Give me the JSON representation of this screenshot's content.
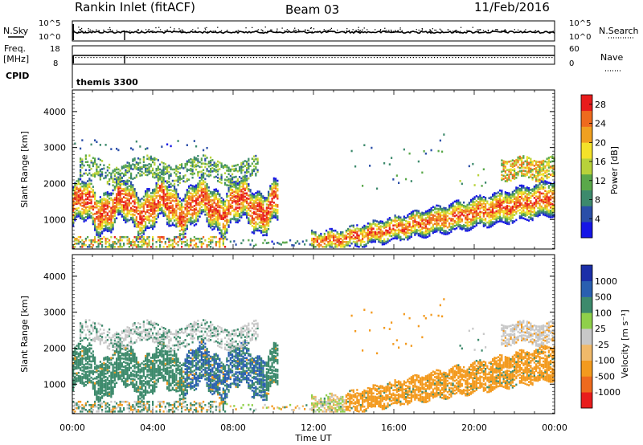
{
  "header": {
    "station": "Rankin Inlet (fitACF)",
    "beam": "Beam 03",
    "date": "11/Feb/2016"
  },
  "summary": {
    "left_labels": {
      "nsky": "N.Sky",
      "freq_top": "Freq.",
      "freq_unit": "[MHz]",
      "cpid": "CPID"
    },
    "right_labels": {
      "nsearch": "N.Search",
      "nave": "Nave"
    },
    "nsky_ticks": [
      "10^5",
      "10^0"
    ],
    "nsearch_ticks": [
      "10^5",
      "10^0"
    ],
    "freq_ticks": [
      "18",
      "8"
    ],
    "nave_ticks": [
      "60",
      "0"
    ],
    "cpid_text": "themis 3300"
  },
  "chart_data": [
    {
      "type": "heatmap",
      "panel": "power",
      "ylabel": "Slant Range [km]",
      "yticks": [
        "4000",
        "3000",
        "2000",
        "1000"
      ],
      "ylim": [
        180,
        4600
      ],
      "xlim": [
        0,
        24
      ],
      "colorbar_label": "Power [dB]",
      "colorbar_ticks": [
        "28",
        "24",
        "20",
        "16",
        "12",
        "8",
        "4"
      ],
      "colorbar_range": [
        0,
        30
      ],
      "colors": [
        "#1515e6",
        "#2a4ea8",
        "#3d8a6c",
        "#5aa84a",
        "#b8d23a",
        "#f4e22a",
        "#f0a020",
        "#ee6a1e",
        "#e81c1c"
      ],
      "regions": [
        {
          "label": "upper band morning",
          "t": [
            0.4,
            10.2
          ],
          "r": [
            2100,
            2700
          ],
          "peak_db": 16
        },
        {
          "label": "main band morning",
          "t": [
            0.0,
            10.2
          ],
          "r": [
            900,
            1900
          ],
          "peak_db": 28
        },
        {
          "label": "near range morning",
          "t": [
            0.0,
            7.5
          ],
          "r": [
            200,
            500
          ],
          "peak_db": 26
        },
        {
          "label": "rising band afternoon",
          "t": [
            11.8,
            24.0
          ],
          "r": [
            300,
            1500
          ],
          "peak_db": 28
        },
        {
          "label": "upper band evening",
          "t": [
            21.3,
            24.0
          ],
          "r": [
            2100,
            2700
          ],
          "peak_db": 26
        }
      ]
    },
    {
      "type": "heatmap",
      "panel": "velocity",
      "ylabel": "Slant Range [km]",
      "yticks": [
        "4000",
        "3000",
        "2000",
        "1000"
      ],
      "ylim": [
        180,
        4600
      ],
      "xlim": [
        0,
        24
      ],
      "colorbar_label": "Velocity [m s⁻¹]",
      "colorbar_ticks": [
        "1000",
        "500",
        "100",
        "25",
        "-25",
        "-100",
        "-500",
        "-1000"
      ],
      "colors": [
        "#e81c1c",
        "#ee6a1e",
        "#f39a1e",
        "#f0b96a",
        "#c8c8c8",
        "#8fd04a",
        "#3d8a6c",
        "#2a5fb0",
        "#1b2fa8"
      ],
      "x_tick_labels": [
        "00:00",
        "04:00",
        "08:00",
        "12:00",
        "16:00",
        "20:00",
        "00:00"
      ],
      "xlabel": "Time UT",
      "regions": [
        {
          "label": "grey upper morning",
          "t": [
            0.4,
            9.0
          ],
          "r": [
            2100,
            2700
          ],
          "velocity": 0
        },
        {
          "label": "green main morning",
          "t": [
            0.0,
            10.2
          ],
          "r": [
            900,
            1900
          ],
          "velocity": 200
        },
        {
          "label": "blue morning",
          "t": [
            5.5,
            9.5
          ],
          "r": [
            1000,
            1900
          ],
          "velocity": 700
        },
        {
          "label": "orange afternoon",
          "t": [
            13.5,
            24.0
          ],
          "r": [
            300,
            2000
          ],
          "velocity": -300
        },
        {
          "label": "grey upper evening",
          "t": [
            19.0,
            24.0
          ],
          "r": [
            1900,
            2800
          ],
          "velocity": 0
        }
      ]
    }
  ]
}
